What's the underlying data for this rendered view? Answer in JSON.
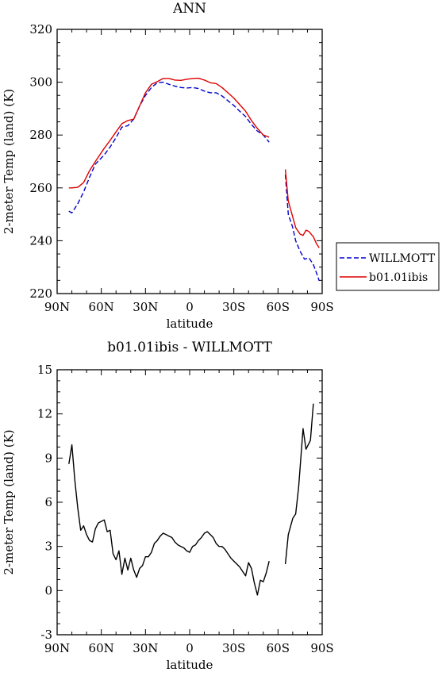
{
  "chart_data": [
    {
      "type": "line",
      "title": "ANN",
      "xlabel": "latitude",
      "ylabel": "2-meter Temp (land) (K)",
      "xlim": [
        90,
        -90
      ],
      "ylim": [
        220,
        320
      ],
      "yticks": [
        220,
        240,
        260,
        280,
        300,
        320
      ],
      "xticks": [
        {
          "value": 90,
          "label": "90N"
        },
        {
          "value": 60,
          "label": "60N"
        },
        {
          "value": 30,
          "label": "30N"
        },
        {
          "value": 0,
          "label": "0"
        },
        {
          "value": -30,
          "label": "30S"
        },
        {
          "value": -60,
          "label": "60S"
        },
        {
          "value": -90,
          "label": "90S"
        }
      ],
      "legend_position": "right",
      "series": [
        {
          "name": "WILLMOTT",
          "color": "#0000cc",
          "dash": "dashed",
          "points": [
            [
              [
                82,
                251.2
              ],
              [
                80,
                250.5
              ],
              [
                76,
                254
              ],
              [
                72,
                258.5
              ],
              [
                68,
                264
              ],
              [
                64,
                269
              ],
              [
                58,
                272.5
              ],
              [
                54,
                275.5
              ],
              [
                50,
                279
              ],
              [
                46,
                283
              ],
              [
                42,
                283.5
              ],
              [
                38,
                286
              ],
              [
                34,
                291
              ],
              [
                30,
                295
              ],
              [
                26,
                298
              ],
              [
                22,
                299.8
              ],
              [
                18,
                300
              ],
              [
                14,
                299.2
              ],
              [
                10,
                298.5
              ],
              [
                6,
                298
              ],
              [
                2,
                297.8
              ],
              [
                -2,
                298
              ],
              [
                -6,
                297.6
              ],
              [
                -10,
                296.6
              ],
              [
                -14,
                296
              ],
              [
                -18,
                296
              ],
              [
                -22,
                294.8
              ],
              [
                -26,
                293
              ],
              [
                -30,
                291.2
              ],
              [
                -34,
                289
              ],
              [
                -38,
                287
              ],
              [
                -42,
                284
              ],
              [
                -46,
                281.5
              ],
              [
                -50,
                280
              ],
              [
                -54,
                277.3
              ]
            ],
            [
              [
                -65,
                265
              ],
              [
                -67,
                250
              ],
              [
                -70,
                245
              ],
              [
                -72,
                240
              ],
              [
                -75,
                236
              ],
              [
                -78,
                233
              ],
              [
                -81,
                233.5
              ],
              [
                -84,
                231
              ],
              [
                -86,
                228
              ],
              [
                -88,
                224.8
              ]
            ]
          ]
        },
        {
          "name": "b01.01ibis",
          "color": "#dd0000",
          "dash": "solid",
          "points": [
            [
              [
                82,
                260
              ],
              [
                80,
                260
              ],
              [
                76,
                260.2
              ],
              [
                72,
                262
              ],
              [
                68,
                266.5
              ],
              [
                64,
                270
              ],
              [
                58,
                275
              ],
              [
                54,
                278
              ],
              [
                50,
                281.2
              ],
              [
                46,
                284.3
              ],
              [
                42,
                285.5
              ],
              [
                38,
                286
              ],
              [
                34,
                291
              ],
              [
                30,
                296
              ],
              [
                26,
                299.2
              ],
              [
                22,
                300.2
              ],
              [
                18,
                301.4
              ],
              [
                14,
                301.4
              ],
              [
                10,
                300.8
              ],
              [
                6,
                300.7
              ],
              [
                2,
                301.1
              ],
              [
                -2,
                301.4
              ],
              [
                -6,
                301.5
              ],
              [
                -10,
                300.8
              ],
              [
                -14,
                299.8
              ],
              [
                -18,
                299.5
              ],
              [
                -22,
                298
              ],
              [
                -26,
                296
              ],
              [
                -30,
                294
              ],
              [
                -34,
                291.5
              ],
              [
                -38,
                289
              ],
              [
                -42,
                285.5
              ],
              [
                -46,
                282.5
              ],
              [
                -50,
                280
              ],
              [
                -54,
                279.2
              ]
            ],
            [
              [
                -65,
                267
              ],
              [
                -67,
                255
              ],
              [
                -70,
                249
              ],
              [
                -72,
                245
              ],
              [
                -75,
                242.5
              ],
              [
                -77,
                242
              ],
              [
                -79,
                244
              ],
              [
                -81,
                243.5
              ],
              [
                -84,
                241.5
              ],
              [
                -86,
                239
              ],
              [
                -88,
                237.3
              ]
            ]
          ]
        }
      ]
    },
    {
      "type": "line",
      "title": "b01.01ibis - WILLMOTT",
      "xlabel": "latitude",
      "ylabel": "2-meter Temp (land) (K)",
      "xlim": [
        90,
        -90
      ],
      "ylim": [
        -3,
        15
      ],
      "yticks": [
        -3,
        0,
        3,
        6,
        9,
        12,
        15
      ],
      "xticks": [
        {
          "value": 90,
          "label": "90N"
        },
        {
          "value": 60,
          "label": "60N"
        },
        {
          "value": 30,
          "label": "30N"
        },
        {
          "value": 0,
          "label": "0"
        },
        {
          "value": -30,
          "label": "30S"
        },
        {
          "value": -60,
          "label": "60S"
        },
        {
          "value": -90,
          "label": "90S"
        }
      ],
      "series": [
        {
          "color": "#000000",
          "dash": "solid",
          "points": [
            [
              [
                82,
                8.6
              ],
              [
                80,
                9.9
              ],
              [
                78,
                7.5
              ],
              [
                76,
                5.6
              ],
              [
                74,
                4.1
              ],
              [
                72,
                4.4
              ],
              [
                70,
                3.8
              ],
              [
                68,
                3.4
              ],
              [
                66,
                3.3
              ],
              [
                64,
                4.2
              ],
              [
                62,
                4.6
              ],
              [
                58,
                4.8
              ],
              [
                56,
                4.0
              ],
              [
                54,
                4.1
              ],
              [
                52,
                2.5
              ],
              [
                50,
                2.1
              ],
              [
                48,
                2.7
              ],
              [
                46,
                1.1
              ],
              [
                44,
                2.2
              ],
              [
                42,
                1.4
              ],
              [
                40,
                2.2
              ],
              [
                38,
                1.4
              ],
              [
                36,
                0.9
              ],
              [
                34,
                1.5
              ],
              [
                32,
                1.7
              ],
              [
                30,
                2.3
              ],
              [
                28,
                2.3
              ],
              [
                26,
                2.6
              ],
              [
                24,
                3.2
              ],
              [
                22,
                3.4
              ],
              [
                20,
                3.7
              ],
              [
                18,
                3.9
              ],
              [
                16,
                3.8
              ],
              [
                14,
                3.7
              ],
              [
                12,
                3.6
              ],
              [
                10,
                3.3
              ],
              [
                8,
                3.1
              ],
              [
                6,
                3.0
              ],
              [
                4,
                2.9
              ],
              [
                2,
                2.7
              ],
              [
                0,
                2.6
              ],
              [
                -2,
                3.0
              ],
              [
                -4,
                3.1
              ],
              [
                -6,
                3.4
              ],
              [
                -8,
                3.6
              ],
              [
                -10,
                3.9
              ],
              [
                -12,
                4.0
              ],
              [
                -14,
                3.8
              ],
              [
                -16,
                3.6
              ],
              [
                -18,
                3.2
              ],
              [
                -20,
                3.0
              ],
              [
                -22,
                3.0
              ],
              [
                -24,
                2.8
              ],
              [
                -26,
                2.5
              ],
              [
                -28,
                2.2
              ],
              [
                -30,
                2.0
              ],
              [
                -32,
                1.8
              ],
              [
                -34,
                1.6
              ],
              [
                -36,
                1.3
              ],
              [
                -38,
                1.0
              ],
              [
                -40,
                1.9
              ],
              [
                -42,
                1.5
              ],
              [
                -44,
                0.5
              ],
              [
                -46,
                -0.3
              ],
              [
                -48,
                0.7
              ],
              [
                -50,
                0.6
              ],
              [
                -52,
                1.2
              ],
              [
                -54,
                2.0
              ]
            ],
            [
              [
                -65,
                1.8
              ],
              [
                -67,
                3.8
              ],
              [
                -70,
                4.9
              ],
              [
                -72,
                5.2
              ],
              [
                -74,
                7.0
              ],
              [
                -77,
                11.0
              ],
              [
                -79,
                9.6
              ],
              [
                -82,
                10.2
              ],
              [
                -84,
                12.7
              ]
            ]
          ]
        }
      ]
    }
  ]
}
